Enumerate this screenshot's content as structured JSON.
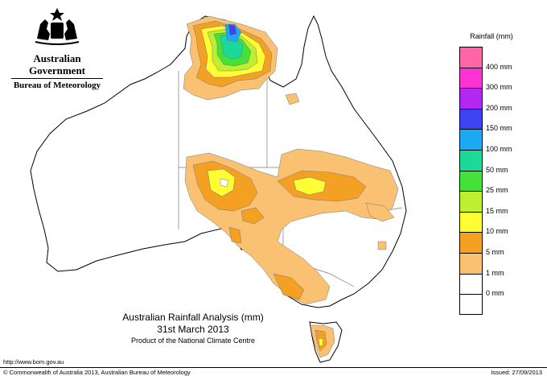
{
  "header": {
    "government_name": "Australian Government",
    "bureau_name": "Bureau of Meteorology"
  },
  "map": {
    "title": "Australian Rainfall Analysis (mm)",
    "date": "31st March 2013",
    "producer": "Product of the National Climate Centre",
    "colors": {
      "land": "#ffffff",
      "outline": "#000000",
      "state_border": "#777777",
      "rain_1_5": "#fbc173",
      "rain_5_10": "#f4a123",
      "rain_10_15": "#ffff33",
      "rain_15_25": "#bff030",
      "rain_25_50": "#44e13b",
      "rain_50_100": "#1cd999",
      "rain_100_150": "#1aa9f2",
      "rain_150_200": "#3c44f1"
    }
  },
  "legend": {
    "title": "Rainfall (mm)",
    "items": [
      {
        "label": "",
        "color": "#ff66a6"
      },
      {
        "label": "400 mm",
        "color": "#ff33d4"
      },
      {
        "label": "300 mm",
        "color": "#b327f1"
      },
      {
        "label": "200 mm",
        "color": "#3c44f1"
      },
      {
        "label": "150 mm",
        "color": "#1aa9f2"
      },
      {
        "label": "100 mm",
        "color": "#1cd999"
      },
      {
        "label": "50 mm",
        "color": "#44e13b"
      },
      {
        "label": "25 mm",
        "color": "#bff030"
      },
      {
        "label": "15 mm",
        "color": "#ffff33"
      },
      {
        "label": "10 mm",
        "color": "#f4a123"
      },
      {
        "label": "5 mm",
        "color": "#fbc173"
      },
      {
        "label": "1 mm",
        "color": "#ffffff"
      },
      {
        "label": "0 mm",
        "color": "#ffffff"
      }
    ]
  },
  "footer": {
    "url": "http://www.bom.gov.au",
    "copyright": "© Commonwealth of Australia 2013, Australian Bureau of Meteorology",
    "issued": "Issued: 27/09/2013"
  }
}
